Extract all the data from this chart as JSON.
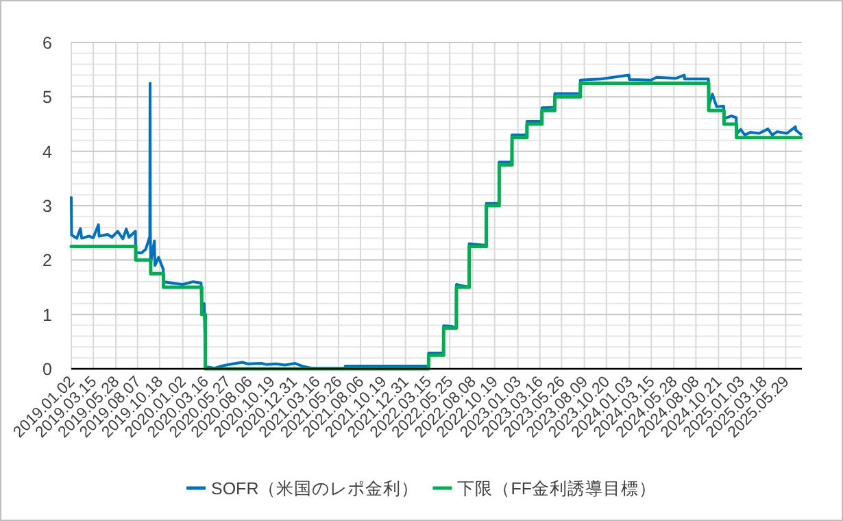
{
  "chart_data": {
    "type": "line",
    "xlim": [
      "2019-01-02",
      "2025-07-21"
    ],
    "xticks": [
      {
        "value": "2019-01-02",
        "label": "2019.01.02"
      },
      {
        "value": "2019-03-15",
        "label": "2019.03.15"
      },
      {
        "value": "2019-05-28",
        "label": "2019.05.28"
      },
      {
        "value": "2019-08-07",
        "label": "2019.08.07"
      },
      {
        "value": "2019-10-18",
        "label": "2019.10.18"
      },
      {
        "value": "2020-01-02",
        "label": "2020.01.02"
      },
      {
        "value": "2020-03-16",
        "label": "2020.03.16"
      },
      {
        "value": "2020-05-27",
        "label": "2020.05.27"
      },
      {
        "value": "2020-08-06",
        "label": "2020.08.06"
      },
      {
        "value": "2020-10-19",
        "label": "2020.10.19"
      },
      {
        "value": "2020-12-31",
        "label": "2020.12.31"
      },
      {
        "value": "2021-03-16",
        "label": "2021.03.16"
      },
      {
        "value": "2021-05-26",
        "label": "2021.05.26"
      },
      {
        "value": "2021-08-06",
        "label": "2021.08.06"
      },
      {
        "value": "2021-10-19",
        "label": "2021.10.19"
      },
      {
        "value": "2021-12-31",
        "label": "2021.12.31"
      },
      {
        "value": "2022-03-15",
        "label": "2022.03.15"
      },
      {
        "value": "2022-05-25",
        "label": "2022.05.25"
      },
      {
        "value": "2022-08-08",
        "label": "2022.08.08"
      },
      {
        "value": "2022-10-19",
        "label": "2022.10.19"
      },
      {
        "value": "2023-01-03",
        "label": "2023.01.03"
      },
      {
        "value": "2023-03-16",
        "label": "2023.03.16"
      },
      {
        "value": "2023-05-26",
        "label": "2023.05.26"
      },
      {
        "value": "2023-08-09",
        "label": "2023.08.09"
      },
      {
        "value": "2023-10-20",
        "label": "2023.10.20"
      },
      {
        "value": "2024-01-03",
        "label": "2024.01.03"
      },
      {
        "value": "2024-03-15",
        "label": "2024.03.15"
      },
      {
        "value": "2024-05-28",
        "label": "2024.05.28"
      },
      {
        "value": "2024-08-08",
        "label": "2024.08.08"
      },
      {
        "value": "2024-10-21",
        "label": "2024.10.21"
      },
      {
        "value": "2025-01-03",
        "label": "2025.01.03"
      },
      {
        "value": "2025-03-18",
        "label": "2025.03.18"
      },
      {
        "value": "2025-05-29",
        "label": "2025.05.29"
      }
    ],
    "ylim": [
      0,
      6
    ],
    "yticks": [
      0,
      1,
      2,
      3,
      4,
      5,
      6
    ],
    "grid": true,
    "legend": "bottom",
    "series": [
      {
        "name": "SOFR（米国のレポ金利）",
        "color": "#0070c0",
        "x": [
          "2019-01-02",
          "2019-01-03",
          "2019-01-20",
          "2019-02-01",
          "2019-02-05",
          "2019-03-01",
          "2019-03-15",
          "2019-04-01",
          "2019-04-03",
          "2019-05-01",
          "2019-05-15",
          "2019-06-03",
          "2019-06-20",
          "2019-07-01",
          "2019-07-10",
          "2019-07-31",
          "2019-08-01",
          "2019-08-20",
          "2019-09-03",
          "2019-09-16",
          "2019-09-17",
          "2019-09-18",
          "2019-09-19",
          "2019-10-01",
          "2019-10-03",
          "2019-10-15",
          "2019-10-30",
          "2019-10-31",
          "2019-12-31",
          "2020-01-02",
          "2020-02-03",
          "2020-03-02",
          "2020-03-04",
          "2020-03-12",
          "2020-03-16",
          "2020-03-17",
          "2020-04-15",
          "2020-05-01",
          "2020-06-01",
          "2020-07-15",
          "2020-08-03",
          "2020-09-15",
          "2020-10-01",
          "2020-11-02",
          "2020-12-01",
          "2021-01-04",
          "2021-02-01",
          "2021-03-01",
          "2021-06-16",
          "2021-06-17",
          "2022-03-16",
          "2022-03-17",
          "2022-05-04",
          "2022-05-05",
          "2022-06-01",
          "2022-06-15",
          "2022-06-16",
          "2022-07-27",
          "2022-07-28",
          "2022-09-21",
          "2022-09-22",
          "2022-11-02",
          "2022-11-03",
          "2022-12-14",
          "2022-12-15",
          "2023-02-01",
          "2023-02-02",
          "2023-03-22",
          "2023-03-23",
          "2023-05-03",
          "2023-05-04",
          "2023-07-26",
          "2023-07-27",
          "2023-10-02",
          "2024-01-02",
          "2024-01-03",
          "2024-03-15",
          "2024-04-01",
          "2024-06-03",
          "2024-07-01",
          "2024-07-02",
          "2024-09-18",
          "2024-09-19",
          "2024-10-01",
          "2024-10-15",
          "2024-11-07",
          "2024-11-08",
          "2024-12-02",
          "2024-12-18",
          "2024-12-19",
          "2025-01-02",
          "2025-01-15",
          "2025-02-03",
          "2025-03-03",
          "2025-04-01",
          "2025-04-15",
          "2025-05-01",
          "2025-06-02",
          "2025-06-30",
          "2025-07-01",
          "2025-07-18"
        ],
        "values": [
          3.15,
          2.46,
          2.4,
          2.58,
          2.4,
          2.44,
          2.41,
          2.65,
          2.44,
          2.47,
          2.42,
          2.53,
          2.39,
          2.57,
          2.42,
          2.53,
          2.14,
          2.13,
          2.2,
          2.43,
          5.25,
          2.55,
          1.95,
          2.35,
          1.9,
          2.05,
          1.83,
          1.6,
          1.55,
          1.55,
          1.6,
          1.58,
          1.1,
          1.2,
          0.26,
          0.04,
          0.01,
          0.04,
          0.08,
          0.12,
          0.09,
          0.1,
          0.08,
          0.09,
          0.07,
          0.1,
          0.04,
          0.01,
          0.01,
          0.05,
          0.05,
          0.29,
          0.29,
          0.79,
          0.78,
          0.75,
          1.55,
          1.5,
          2.3,
          2.27,
          3.04,
          3.04,
          3.8,
          3.8,
          4.3,
          4.3,
          4.55,
          4.55,
          4.8,
          4.81,
          5.06,
          5.06,
          5.31,
          5.33,
          5.4,
          5.32,
          5.31,
          5.36,
          5.34,
          5.4,
          5.33,
          5.33,
          4.84,
          5.05,
          4.82,
          4.83,
          4.6,
          4.65,
          4.62,
          4.32,
          4.4,
          4.3,
          4.35,
          4.33,
          4.41,
          4.3,
          4.36,
          4.33,
          4.45,
          4.39,
          4.31
        ]
      },
      {
        "name": "下限（FF金利誘導目標）",
        "color": "#00b050",
        "type": "step",
        "x": [
          "2019-01-02",
          "2019-08-01",
          "2019-09-19",
          "2019-10-31",
          "2020-03-04",
          "2020-03-16",
          "2022-03-17",
          "2022-05-05",
          "2022-06-16",
          "2022-07-28",
          "2022-09-22",
          "2022-11-03",
          "2022-12-15",
          "2023-02-02",
          "2023-03-23",
          "2023-05-04",
          "2023-07-27",
          "2024-09-19",
          "2024-11-08",
          "2024-12-19",
          "2025-07-18"
        ],
        "values": [
          2.25,
          2.0,
          1.75,
          1.5,
          1.0,
          0,
          0.25,
          0.75,
          1.5,
          2.25,
          3.0,
          3.75,
          4.25,
          4.5,
          4.75,
          5.0,
          5.25,
          4.75,
          4.5,
          4.25,
          4.25
        ]
      }
    ]
  }
}
